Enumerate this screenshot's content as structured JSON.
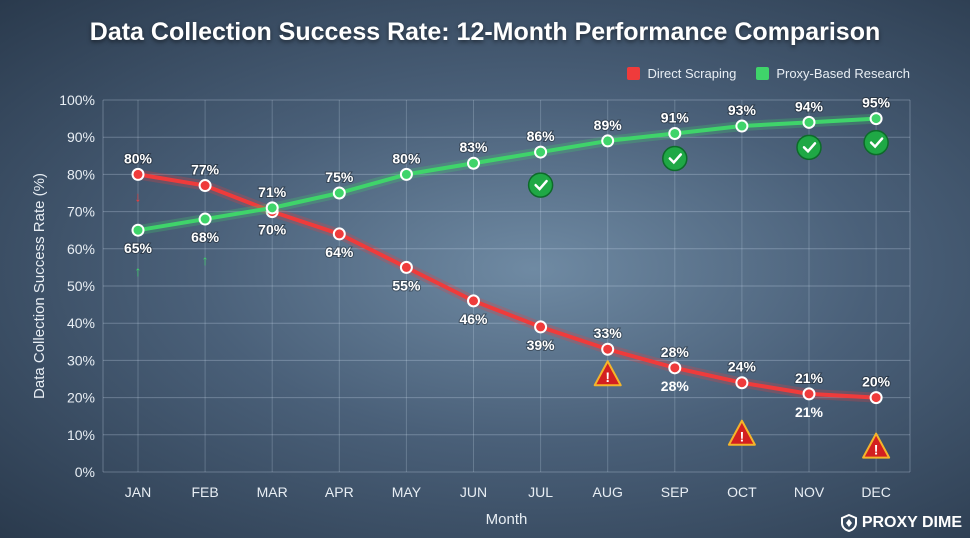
{
  "chart_data": {
    "type": "line",
    "title": "Data Collection Success Rate: 12-Month Performance Comparison",
    "xlabel": "Month",
    "ylabel": "Data Collection Success Rate (%)",
    "ylim": [
      0,
      100
    ],
    "yticks": [
      "0%",
      "10%",
      "20%",
      "30%",
      "40%",
      "50%",
      "60%",
      "70%",
      "80%",
      "90%",
      "100%"
    ],
    "categories": [
      "JAN",
      "FEB",
      "MAR",
      "APR",
      "MAY",
      "JUN",
      "JUL",
      "AUG",
      "SEP",
      "OCT",
      "NOV",
      "DEC"
    ],
    "grid": true,
    "legend_position": "top-right",
    "series": [
      {
        "name": "Direct Scraping",
        "color": "#ef3b3b",
        "values": [
          80,
          77,
          70,
          64,
          55,
          46,
          39,
          33,
          28,
          24,
          21,
          20
        ],
        "labels": [
          "80%",
          "77%",
          "70%",
          "64%",
          "55%",
          "46%",
          "39%",
          "33%",
          "28%",
          "24%",
          "21%",
          "20%"
        ]
      },
      {
        "name": "Proxy-Based Research",
        "color": "#3fd46a",
        "values": [
          65,
          68,
          71,
          75,
          80,
          83,
          86,
          89,
          91,
          93,
          94,
          95
        ],
        "labels": [
          "65%",
          "68%",
          "71%",
          "75%",
          "80%",
          "83%",
          "86%",
          "89%",
          "91%",
          "93%",
          "94%",
          "95%"
        ]
      }
    ],
    "annotations": [
      {
        "type": "duplicate-label",
        "series": 0,
        "month": "SEP",
        "text": "28%"
      },
      {
        "type": "duplicate-label",
        "series": 0,
        "month": "NOV",
        "text": "21%"
      },
      {
        "type": "arrow-down",
        "series": 0,
        "month": "JAN"
      },
      {
        "type": "arrow-up",
        "series": 1,
        "month": "JAN"
      },
      {
        "type": "arrow-up",
        "series": 1,
        "month": "FEB"
      },
      {
        "type": "check",
        "series": 1,
        "month": "JUL"
      },
      {
        "type": "check",
        "series": 1,
        "month": "SEP"
      },
      {
        "type": "check",
        "series": 1,
        "month": "NOV"
      },
      {
        "type": "check",
        "series": 1,
        "month": "DEC"
      },
      {
        "type": "warning",
        "series": 0,
        "month": "AUG"
      },
      {
        "type": "warning",
        "series": 0,
        "month": "OCT"
      },
      {
        "type": "warning",
        "series": 0,
        "month": "DEC"
      }
    ]
  },
  "brand": "PROXY DIME"
}
